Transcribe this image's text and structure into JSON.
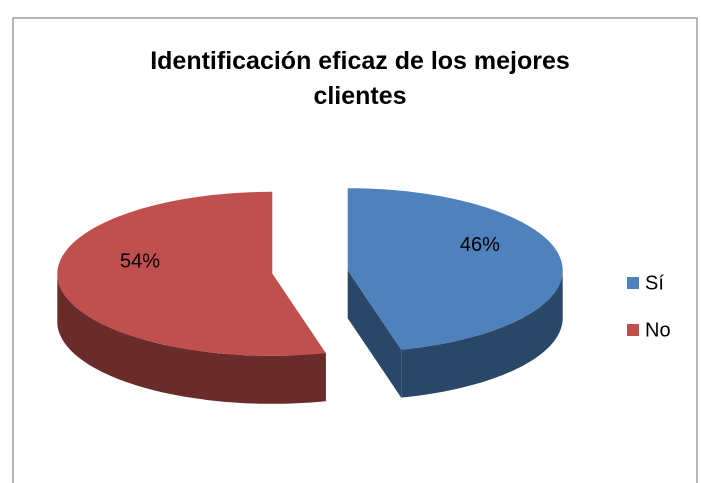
{
  "chart_data": {
    "type": "pie",
    "title": "Identificación eficaz de los mejores clientes",
    "categories": [
      "Sí",
      "No"
    ],
    "values": [
      46,
      54
    ],
    "value_labels": [
      "46%",
      "54%"
    ],
    "colors": [
      "#4f81bd",
      "#c0504d"
    ],
    "legend": "right",
    "three_d": true,
    "exploded": true
  }
}
